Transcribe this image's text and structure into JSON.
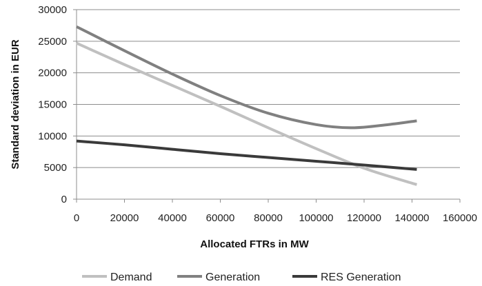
{
  "chart_data": {
    "type": "line",
    "title": "",
    "xlabel": "Allocated FTRs in MW",
    "ylabel": "Standard deviation in EUR",
    "xlim": [
      0,
      160000
    ],
    "ylim": [
      0,
      30000
    ],
    "x_ticks": [
      0,
      20000,
      40000,
      60000,
      80000,
      100000,
      120000,
      140000,
      160000
    ],
    "y_ticks": [
      0,
      5000,
      10000,
      15000,
      20000,
      25000,
      30000
    ],
    "x_tick_labels": [
      "0",
      "20000",
      "40000",
      "60000",
      "80000",
      "100000",
      "120000",
      "140000",
      "160000"
    ],
    "y_tick_labels": [
      "0",
      "5000",
      "10000",
      "15000",
      "20000",
      "25000",
      "30000"
    ],
    "grid": "horizontal",
    "legend_position": "bottom",
    "series": [
      {
        "name": "Demand",
        "color": "#c0c0c0",
        "x": [
          0,
          20000,
          40000,
          60000,
          80000,
          100000,
          120000,
          142000
        ],
        "y": [
          24700,
          21300,
          18000,
          14700,
          11300,
          8000,
          4900,
          2300
        ]
      },
      {
        "name": "Generation",
        "color": "#808080",
        "x": [
          0,
          20000,
          40000,
          60000,
          80000,
          100000,
          115000,
          130000,
          142000
        ],
        "y": [
          27300,
          23500,
          19800,
          16400,
          13600,
          11800,
          11300,
          11800,
          12400
        ]
      },
      {
        "name": "RES Generation",
        "color": "#3a3a3a",
        "x": [
          0,
          20000,
          40000,
          60000,
          80000,
          100000,
          120000,
          142000
        ],
        "y": [
          9200,
          8600,
          7900,
          7200,
          6600,
          6000,
          5400,
          4700
        ]
      }
    ]
  }
}
